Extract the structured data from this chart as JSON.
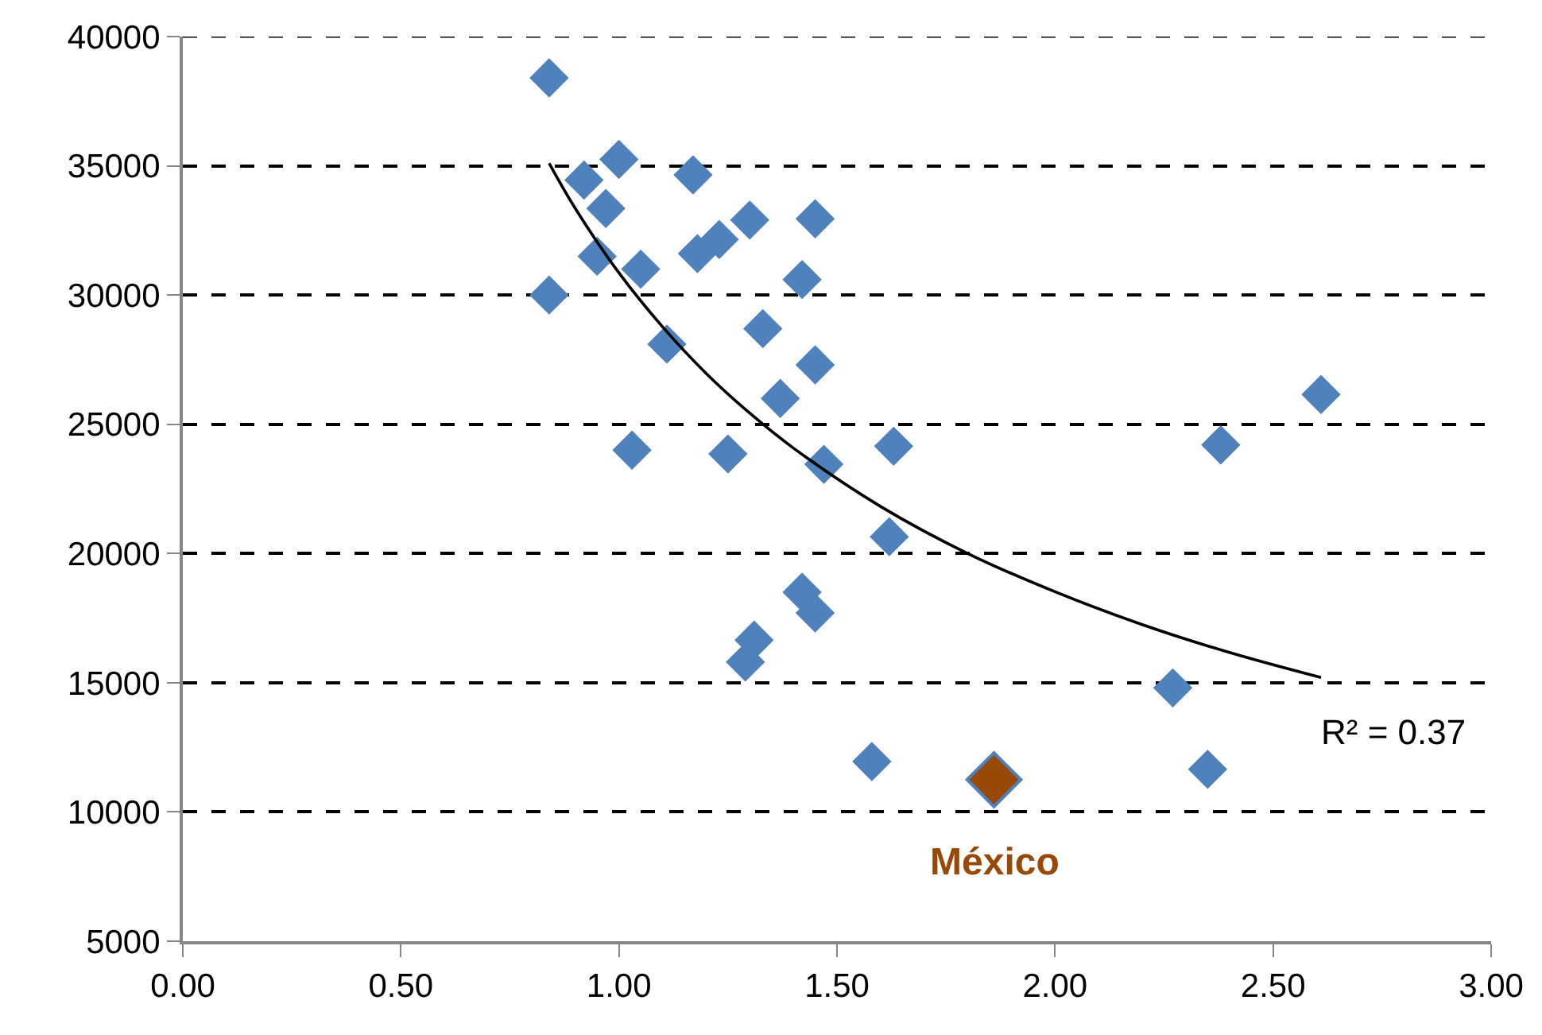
{
  "chart_data": {
    "type": "scatter",
    "marker": "diamond",
    "grid": "y",
    "legend": false,
    "xlim": [
      0,
      3
    ],
    "xticks": [
      {
        "value": 0,
        "label": "0.00"
      },
      {
        "value": 0.5,
        "label": "0.50"
      },
      {
        "value": 1,
        "label": "1.00"
      },
      {
        "value": 1.5,
        "label": "1.50"
      },
      {
        "value": 2,
        "label": "2.00"
      },
      {
        "value": 2.5,
        "label": "2.50"
      },
      {
        "value": 3,
        "label": "3.00"
      }
    ],
    "ylim": [
      5000,
      40000
    ],
    "yticks": [
      5000,
      10000,
      15000,
      20000,
      25000,
      30000,
      35000,
      40000
    ],
    "series": [
      {
        "color": "#4f81bd",
        "x": [
          0.84,
          0.92,
          1.0,
          0.97,
          0.95,
          1.05,
          0.84,
          1.11,
          1.03,
          1.17,
          1.18,
          1.23,
          1.3,
          1.33,
          1.42,
          1.45,
          1.37,
          1.45,
          1.25,
          1.47,
          1.63,
          1.62,
          1.42,
          1.45,
          1.31,
          1.29,
          1.58,
          2.27,
          2.35,
          2.38,
          2.61
        ],
        "values": [
          38400,
          34450,
          35250,
          33350,
          31500,
          31000,
          30000,
          28100,
          24000,
          34650,
          31600,
          32150,
          32900,
          28700,
          30600,
          32950,
          26000,
          27300,
          23850,
          23450,
          24150,
          20650,
          18500,
          17700,
          16650,
          15800,
          11950,
          14800,
          11650,
          24200,
          26150
        ]
      },
      {
        "name": "México",
        "color": "#984807",
        "x": [
          1.86
        ],
        "values": [
          11250
        ]
      },
      {
        "type": "line",
        "marker": "none",
        "color": "#000000",
        "line_style": "solid",
        "x": [
          0.84,
          0.9,
          1.0,
          1.1,
          1.2,
          1.3,
          1.4,
          1.6,
          1.8,
          2.0,
          2.2,
          2.4,
          2.61
        ],
        "values": [
          35100,
          33350,
          30860,
          28770,
          26970,
          25430,
          24080,
          21820,
          20000,
          18520,
          17250,
          16170,
          15200
        ]
      }
    ],
    "annotations": [
      {
        "text": "R² = 0.37",
        "x": 2.61,
        "y": 15200
      }
    ]
  }
}
